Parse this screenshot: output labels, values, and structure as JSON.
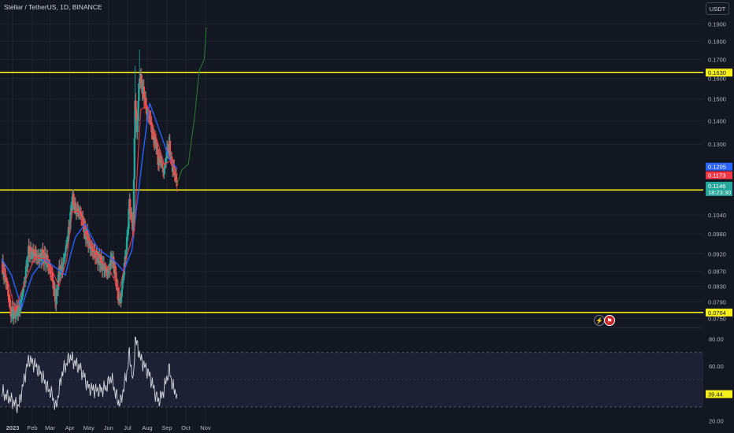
{
  "header": {
    "title": "Stellar / TetherUS, 1D, BINANCE",
    "unit_button": "USDT"
  },
  "colors": {
    "background": "#131722",
    "grid": "#1f2330",
    "up": "#26a69a",
    "down": "#ef5350",
    "ma_fast": "#f23645",
    "ma_slow": "#2962ff",
    "level": "#f7f01a",
    "projection": "#2e7d32",
    "rsi_line": "#d1d4dc",
    "rsi_band": "#1e2033"
  },
  "icons": {
    "flash": "lightning-icon",
    "flag": "us-flag-icon"
  },
  "chart_data": [
    {
      "type": "candlestick",
      "title": "Stellar / TetherUS, 1D, BINANCE",
      "y_scale": "log",
      "ylim": [
        0.0736,
        0.205
      ],
      "yticks": [
        "0.1900",
        "0.1800",
        "0.1700",
        "0.1600",
        "0.1500",
        "0.1400",
        "0.1300",
        "0.1040",
        "0.0980",
        "0.0920",
        "0.0870",
        "0.0830",
        "0.0790",
        "0.0750"
      ],
      "xticks": [
        {
          "label": "2023",
          "date": "2023-01-01"
        },
        {
          "label": "Feb",
          "date": "2023-02-01"
        },
        {
          "label": "Mar",
          "date": "2023-03-01"
        },
        {
          "label": "Apr",
          "date": "2023-04-01"
        },
        {
          "label": "May",
          "date": "2023-05-01"
        },
        {
          "label": "Jun",
          "date": "2023-06-01"
        },
        {
          "label": "Jul",
          "date": "2023-07-01"
        },
        {
          "label": "Aug",
          "date": "2023-08-01"
        },
        {
          "label": "Sep",
          "date": "2023-09-01"
        },
        {
          "label": "Oct",
          "date": "2023-10-01"
        },
        {
          "label": "Nov",
          "date": "2023-11-01"
        }
      ],
      "horizontal_levels": [
        {
          "label": "0.1630",
          "value": 0.163
        },
        {
          "label": "0.1125",
          "value": 0.1125
        },
        {
          "label": "0.0764",
          "value": 0.0764
        }
      ],
      "price_labels": [
        {
          "label": "0.1205",
          "value": 0.1205,
          "color": "#2962ff"
        },
        {
          "label": "0.1173",
          "value": 0.1173,
          "color": "#f23645"
        },
        {
          "label": "0.1146",
          "sub": "18:23:30",
          "value": 0.1146,
          "color": "#26a69a"
        }
      ],
      "close_anchors": [
        [
          "2022-12-15",
          0.0885
        ],
        [
          "2022-12-22",
          0.0845
        ],
        [
          "2022-12-29",
          0.0762
        ],
        [
          "2023-01-05",
          0.0765
        ],
        [
          "2023-01-12",
          0.0772
        ],
        [
          "2023-01-20",
          0.0845
        ],
        [
          "2023-01-26",
          0.0925
        ],
        [
          "2023-02-05",
          0.0918
        ],
        [
          "2023-02-10",
          0.0908
        ],
        [
          "2023-02-16",
          0.0915
        ],
        [
          "2023-02-24",
          0.0902
        ],
        [
          "2023-03-03",
          0.0865
        ],
        [
          "2023-03-10",
          0.0792
        ],
        [
          "2023-03-15",
          0.087
        ],
        [
          "2023-03-20",
          0.0878
        ],
        [
          "2023-03-27",
          0.0948
        ],
        [
          "2023-04-01",
          0.101
        ],
        [
          "2023-04-05",
          0.11
        ],
        [
          "2023-04-10",
          0.1055
        ],
        [
          "2023-04-18",
          0.1045
        ],
        [
          "2023-04-25",
          0.0985
        ],
        [
          "2023-05-05",
          0.0935
        ],
        [
          "2023-05-15",
          0.091
        ],
        [
          "2023-05-25",
          0.088
        ],
        [
          "2023-06-01",
          0.0865
        ],
        [
          "2023-06-06",
          0.091
        ],
        [
          "2023-06-12",
          0.0862
        ],
        [
          "2023-06-16",
          0.08
        ],
        [
          "2023-06-20",
          0.079
        ],
        [
          "2023-06-25",
          0.087
        ],
        [
          "2023-06-30",
          0.095
        ],
        [
          "2023-07-04",
          0.108
        ],
        [
          "2023-07-10",
          0.0985
        ],
        [
          "2023-07-13",
          0.15
        ],
        [
          "2023-07-16",
          0.135
        ],
        [
          "2023-07-20",
          0.162
        ],
        [
          "2023-07-24",
          0.156
        ],
        [
          "2023-07-27",
          0.152
        ],
        [
          "2023-08-01",
          0.143
        ],
        [
          "2023-08-05",
          0.142
        ],
        [
          "2023-08-10",
          0.133
        ],
        [
          "2023-08-15",
          0.131
        ],
        [
          "2023-08-18",
          0.123
        ],
        [
          "2023-08-22",
          0.124
        ],
        [
          "2023-08-27",
          0.1185
        ],
        [
          "2023-09-01",
          0.1265
        ],
        [
          "2023-09-05",
          0.1295
        ],
        [
          "2023-09-08",
          0.1225
        ],
        [
          "2023-09-12",
          0.12
        ],
        [
          "2023-09-17",
          0.1146
        ]
      ],
      "moving_average_anchors": {
        "fast": [
          [
            "2022-12-15",
            0.089
          ],
          [
            "2022-12-25",
            0.084
          ],
          [
            "2023-01-05",
            0.077
          ],
          [
            "2023-01-20",
            0.084
          ],
          [
            "2023-02-05",
            0.091
          ],
          [
            "2023-02-20",
            0.0905
          ],
          [
            "2023-03-05",
            0.087
          ],
          [
            "2023-03-15",
            0.083
          ],
          [
            "2023-03-27",
            0.09
          ],
          [
            "2023-04-05",
            0.105
          ],
          [
            "2023-04-15",
            0.105
          ],
          [
            "2023-05-01",
            0.096
          ],
          [
            "2023-05-15",
            0.091
          ],
          [
            "2023-06-01",
            0.088
          ],
          [
            "2023-06-18",
            0.082
          ],
          [
            "2023-07-01",
            0.092
          ],
          [
            "2023-07-12",
            0.099
          ],
          [
            "2023-07-22",
            0.145
          ],
          [
            "2023-08-01",
            0.147
          ],
          [
            "2023-08-15",
            0.133
          ],
          [
            "2023-08-28",
            0.122
          ],
          [
            "2023-09-08",
            0.1235
          ],
          [
            "2023-09-17",
            0.1173
          ]
        ],
        "slow": [
          [
            "2022-12-15",
            0.0905
          ],
          [
            "2022-12-30",
            0.086
          ],
          [
            "2023-01-15",
            0.0775
          ],
          [
            "2023-02-01",
            0.086
          ],
          [
            "2023-02-20",
            0.0905
          ],
          [
            "2023-03-10",
            0.088
          ],
          [
            "2023-03-25",
            0.086
          ],
          [
            "2023-04-10",
            0.097
          ],
          [
            "2023-04-25",
            0.101
          ],
          [
            "2023-05-15",
            0.0935
          ],
          [
            "2023-06-10",
            0.09
          ],
          [
            "2023-06-25",
            0.087
          ],
          [
            "2023-07-08",
            0.093
          ],
          [
            "2023-07-20",
            0.115
          ],
          [
            "2023-08-05",
            0.148
          ],
          [
            "2023-08-20",
            0.136
          ],
          [
            "2023-09-05",
            0.124
          ],
          [
            "2023-09-17",
            0.1205
          ]
        ]
      },
      "projection_anchors": [
        [
          "2023-09-17",
          0.1146
        ],
        [
          "2023-09-25",
          0.12
        ],
        [
          "2023-10-05",
          0.122
        ],
        [
          "2023-10-15",
          0.142
        ],
        [
          "2023-10-22",
          0.164
        ],
        [
          "2023-10-30",
          0.17
        ],
        [
          "2023-11-02",
          0.188
        ]
      ]
    },
    {
      "type": "line",
      "ylim": [
        20,
        80
      ],
      "yticks": [
        "80.00",
        "60.00",
        "20.00"
      ],
      "band": [
        30,
        70
      ],
      "last_value": "39.44",
      "anchors": [
        [
          "2022-12-15",
          41
        ],
        [
          "2022-12-30",
          35
        ],
        [
          "2023-01-10",
          30
        ],
        [
          "2023-01-20",
          52
        ],
        [
          "2023-01-26",
          65
        ],
        [
          "2023-02-05",
          61
        ],
        [
          "2023-02-15",
          54
        ],
        [
          "2023-02-25",
          44
        ],
        [
          "2023-03-05",
          38
        ],
        [
          "2023-03-10",
          29
        ],
        [
          "2023-03-20",
          55
        ],
        [
          "2023-04-01",
          67
        ],
        [
          "2023-04-08",
          63
        ],
        [
          "2023-04-18",
          58
        ],
        [
          "2023-05-01",
          44
        ],
        [
          "2023-05-15",
          42
        ],
        [
          "2023-05-28",
          44
        ],
        [
          "2023-06-05",
          52
        ],
        [
          "2023-06-16",
          34
        ],
        [
          "2023-06-20",
          33
        ],
        [
          "2023-07-01",
          58
        ],
        [
          "2023-07-04",
          70
        ],
        [
          "2023-07-10",
          47
        ],
        [
          "2023-07-13",
          81
        ],
        [
          "2023-07-22",
          65
        ],
        [
          "2023-08-05",
          53
        ],
        [
          "2023-08-18",
          34
        ],
        [
          "2023-08-25",
          39
        ],
        [
          "2023-09-05",
          58
        ],
        [
          "2023-09-10",
          45
        ],
        [
          "2023-09-17",
          39.44
        ]
      ]
    }
  ]
}
